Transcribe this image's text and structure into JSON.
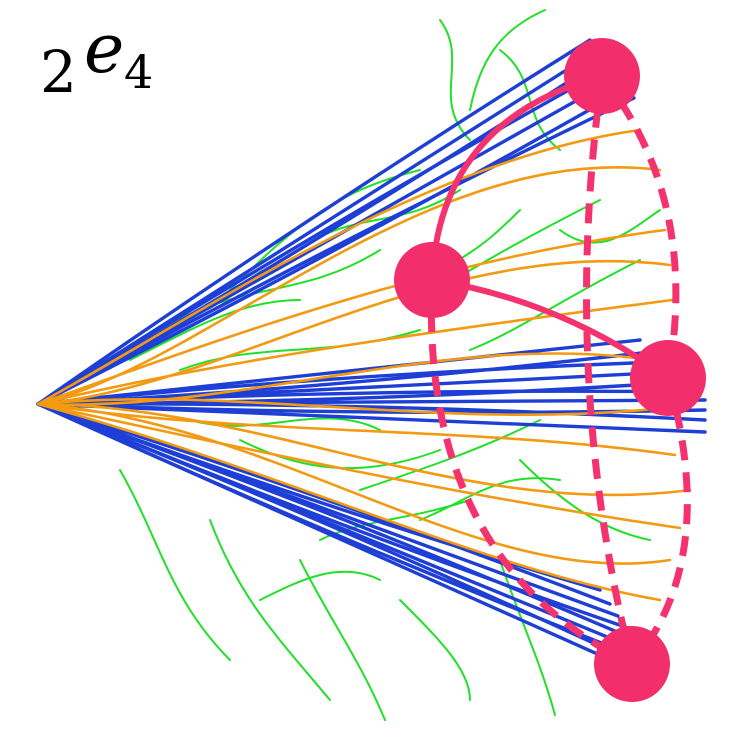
{
  "label": {
    "base": "2",
    "letter": "e",
    "subscript": "4"
  },
  "colors": {
    "blue_strands": "#1e3fd6",
    "orange_strands": "#f39a12",
    "green_strands": "#22e02a",
    "pink_graph": "#f4336e",
    "node_fill": "#f22e6c"
  },
  "graph": {
    "nodes": [
      "top",
      "middle-left",
      "right",
      "bottom"
    ],
    "solid_edges": [
      [
        "top",
        "middle-left"
      ],
      [
        "middle-left",
        "right"
      ]
    ],
    "dashed_edges": [
      [
        "top",
        "right"
      ],
      [
        "top",
        "bottom"
      ],
      [
        "middle-left",
        "bottom"
      ],
      [
        "right",
        "bottom"
      ]
    ]
  }
}
